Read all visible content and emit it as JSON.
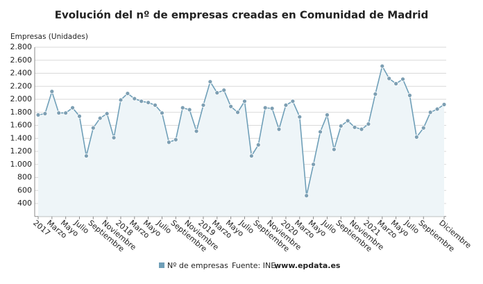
{
  "chart_data": {
    "type": "area-line",
    "title": "Evolución del nº de empresas creadas en Comunidad de Madrid",
    "y_label": "Empresas (Unidades)",
    "source_label": "Fuente: INE,",
    "source_site": "www.epdata.es",
    "categories": [
      "2017",
      null,
      "Marzo",
      null,
      "Mayo",
      null,
      "Julio",
      null,
      "Septiembre",
      null,
      "Noviembre",
      null,
      "2018",
      null,
      "Marzo",
      null,
      "Mayo",
      null,
      "Julio",
      null,
      "Septiembre",
      null,
      "Noviembre",
      null,
      "2019",
      null,
      "Marzo",
      null,
      "Mayo",
      null,
      "Julio",
      null,
      "Septiembre",
      null,
      "Noviembre",
      null,
      "2020",
      null,
      "Marzo",
      null,
      "Mayo",
      null,
      "Julio",
      null,
      "Septiembre",
      null,
      "Noviembre",
      null,
      "2021",
      null,
      "Marzo",
      null,
      "Mayo",
      null,
      "Julio",
      null,
      "Septiembre",
      null,
      null,
      "Diciembre"
    ],
    "series": [
      {
        "name": "Nº de empresas",
        "color": "#6f9fb8",
        "fill": "#eef5f8",
        "values": [
          1760,
          1780,
          2120,
          1790,
          1790,
          1870,
          1740,
          1130,
          1560,
          1710,
          1780,
          1410,
          1990,
          2090,
          2010,
          1970,
          1950,
          1910,
          1790,
          1340,
          1380,
          1870,
          1840,
          1510,
          1910,
          2270,
          2100,
          2140,
          1890,
          1800,
          1970,
          1130,
          1300,
          1870,
          1860,
          1540,
          1910,
          1970,
          1730,
          520,
          1000,
          1500,
          1760,
          1230,
          1590,
          1670,
          1570,
          1540,
          1620,
          2080,
          2510,
          2320,
          2240,
          2310,
          2060,
          1420,
          1560,
          1800,
          1850,
          1920
        ]
      }
    ],
    "ylim": [
      200,
      2800
    ],
    "yticks": [
      {
        "value": 400,
        "label": "400"
      },
      {
        "value": 600,
        "label": "600"
      },
      {
        "value": 800,
        "label": "800"
      },
      {
        "value": 1000,
        "label": "1.000"
      },
      {
        "value": 1200,
        "label": "1.200"
      },
      {
        "value": 1400,
        "label": "1.400"
      },
      {
        "value": 1600,
        "label": "1.600"
      },
      {
        "value": 1800,
        "label": "1.800"
      },
      {
        "value": 2000,
        "label": "2.000"
      },
      {
        "value": 2200,
        "label": "2.200"
      },
      {
        "value": 2400,
        "label": "2.400"
      },
      {
        "value": 2600,
        "label": "2.600"
      },
      {
        "value": 2800,
        "label": "2.800"
      }
    ],
    "grid": true
  }
}
